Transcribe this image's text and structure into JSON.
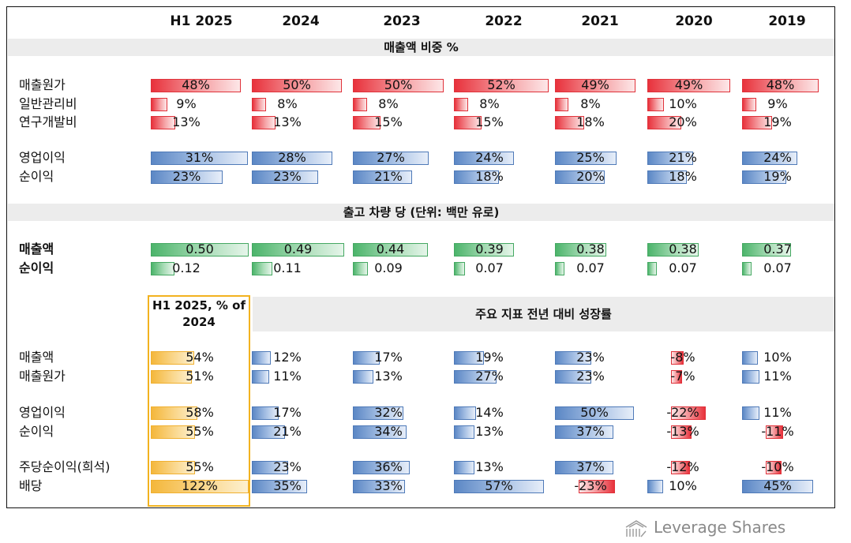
{
  "columns": [
    "H1 2025",
    "2024",
    "2023",
    "2022",
    "2021",
    "2020",
    "2019"
  ],
  "sections": {
    "revenue_share": "매출액 비중 %",
    "per_vehicle": "출고 차량 당 (단위: 백만 유로)",
    "growth": "주요 지표 전년 대비 성장률",
    "h1_vs": "H1 2025, % of 2024"
  },
  "cost_rows": [
    {
      "label": "매출원가",
      "values": [
        "48%",
        "50%",
        "50%",
        "52%",
        "49%",
        "49%",
        "48%"
      ],
      "nums": [
        48,
        50,
        50,
        52,
        49,
        49,
        48
      ]
    },
    {
      "label": "일반관리비",
      "values": [
        "9%",
        "8%",
        "8%",
        "8%",
        "8%",
        "10%",
        "9%"
      ],
      "nums": [
        9,
        8,
        8,
        8,
        8,
        10,
        9
      ]
    },
    {
      "label": "연구개발비",
      "values": [
        "13%",
        "13%",
        "15%",
        "15%",
        "18%",
        "20%",
        "19%"
      ],
      "nums": [
        13,
        13,
        15,
        15,
        18,
        20,
        19
      ]
    }
  ],
  "margin_rows": [
    {
      "label": "영업이익",
      "values": [
        "31%",
        "28%",
        "27%",
        "24%",
        "25%",
        "21%",
        "24%"
      ],
      "nums": [
        31,
        28,
        27,
        24,
        25,
        21,
        24
      ]
    },
    {
      "label": "순이익",
      "values": [
        "23%",
        "23%",
        "21%",
        "18%",
        "20%",
        "18%",
        "19%"
      ],
      "nums": [
        23,
        23,
        21,
        18,
        20,
        18,
        19
      ]
    }
  ],
  "vehicle_rows": [
    {
      "label": "매출액",
      "values": [
        "0.50",
        "0.49",
        "0.44",
        "0.39",
        "0.38",
        "0.38",
        "0.37"
      ],
      "nums": [
        0.5,
        0.49,
        0.44,
        0.39,
        0.38,
        0.38,
        0.37
      ]
    },
    {
      "label": "순이익",
      "values": [
        "0.12",
        "0.11",
        "0.09",
        "0.07",
        "0.07",
        "0.07",
        "0.07"
      ],
      "nums": [
        0.12,
        0.11,
        0.09,
        0.07,
        0.07,
        0.07,
        0.07
      ]
    }
  ],
  "growth_rows": [
    {
      "label": "매출액",
      "h1": "54%",
      "h1num": 54,
      "values": [
        "12%",
        "17%",
        "19%",
        "23%",
        "-8%",
        "10%"
      ],
      "nums": [
        12,
        17,
        19,
        23,
        -8,
        10
      ]
    },
    {
      "label": "매출원가",
      "h1": "51%",
      "h1num": 51,
      "values": [
        "11%",
        "13%",
        "27%",
        "23%",
        "-7%",
        "11%"
      ],
      "nums": [
        11,
        13,
        27,
        23,
        -7,
        11
      ]
    },
    {
      "label": "영업이익",
      "h1": "58%",
      "h1num": 58,
      "values": [
        "17%",
        "32%",
        "14%",
        "50%",
        "-22%",
        "11%"
      ],
      "nums": [
        17,
        32,
        14,
        50,
        -22,
        11
      ]
    },
    {
      "label": "순이익",
      "h1": "55%",
      "h1num": 55,
      "values": [
        "21%",
        "34%",
        "13%",
        "37%",
        "-13%",
        "-11%"
      ],
      "nums": [
        21,
        34,
        13,
        37,
        -13,
        -11
      ]
    },
    {
      "label": "주당순이익(희석)",
      "h1": "55%",
      "h1num": 55,
      "values": [
        "23%",
        "36%",
        "13%",
        "37%",
        "-12%",
        "-10%"
      ],
      "nums": [
        23,
        36,
        13,
        37,
        -12,
        -10
      ]
    },
    {
      "label": "배당",
      "h1": "122%",
      "h1num": 122,
      "values": [
        "35%",
        "33%",
        "57%",
        "-23%",
        "10%",
        "45%"
      ],
      "nums": [
        35,
        33,
        57,
        -23,
        10,
        45
      ]
    }
  ],
  "brand": "Leverage Shares"
}
